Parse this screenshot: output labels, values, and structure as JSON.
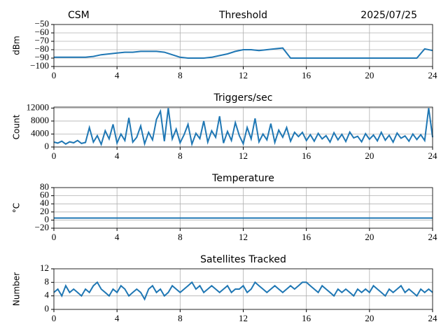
{
  "chart_data": [
    {
      "type": "line",
      "left_title": "CSM",
      "title": "Threshold",
      "right_title": "2025/07/25",
      "ylabel": "dBm",
      "color": "#1f77b4",
      "grid": true,
      "xlim": [
        0,
        24
      ],
      "xticks": [
        0,
        4,
        8,
        12,
        16,
        20,
        24
      ],
      "ylim": [
        -100,
        -50
      ],
      "yticks": [
        {
          "value": -100,
          "label": "−100"
        },
        {
          "value": -90,
          "label": "−90"
        },
        {
          "value": -80,
          "label": "−80"
        },
        {
          "value": -70,
          "label": "−70"
        },
        {
          "value": -60,
          "label": "−60"
        },
        {
          "value": -50,
          "label": "−50"
        }
      ],
      "x": [
        0,
        0.5,
        1,
        1.5,
        2,
        2.5,
        3,
        3.5,
        4,
        4.5,
        5,
        5.5,
        6,
        6.5,
        7,
        7.5,
        8,
        8.5,
        9,
        9.5,
        10,
        10.5,
        11,
        11.5,
        12,
        12.5,
        13,
        13.5,
        14,
        14.5,
        15,
        15.5,
        16,
        16.5,
        17,
        17.5,
        18,
        18.5,
        19,
        19.5,
        20,
        20.5,
        21,
        21.5,
        22,
        22.5,
        23,
        23.5,
        24
      ],
      "values": [
        -89,
        -89,
        -89,
        -89,
        -89,
        -88,
        -86,
        -85,
        -84,
        -83,
        -83,
        -82,
        -82,
        -82,
        -83,
        -86,
        -89,
        -90,
        -90,
        -90,
        -89,
        -87,
        -85,
        -82,
        -80,
        -80,
        -81,
        -80,
        -79,
        -78,
        -90,
        -90,
        -90,
        -90,
        -90,
        -90,
        -90,
        -90,
        -90,
        -90,
        -90,
        -90,
        -90,
        -90,
        -90,
        -90,
        -90,
        -79,
        -81
      ]
    },
    {
      "type": "line",
      "title": "Triggers/sec",
      "ylabel": "Count",
      "color": "#1f77b4",
      "grid": true,
      "xlim": [
        0,
        24
      ],
      "xticks": [
        0,
        4,
        8,
        12,
        16,
        20,
        24
      ],
      "ylim": [
        0,
        12300
      ],
      "yticks": [
        0,
        4000,
        8000,
        12000
      ],
      "x": [
        0,
        0.25,
        0.5,
        0.75,
        1,
        1.25,
        1.5,
        1.75,
        2,
        2.25,
        2.5,
        2.75,
        3,
        3.25,
        3.5,
        3.75,
        4,
        4.25,
        4.5,
        4.75,
        5,
        5.25,
        5.5,
        5.75,
        6,
        6.25,
        6.5,
        6.75,
        7,
        7.25,
        7.5,
        7.75,
        8,
        8.25,
        8.5,
        8.75,
        9,
        9.25,
        9.5,
        9.75,
        10,
        10.25,
        10.5,
        10.75,
        11,
        11.25,
        11.5,
        11.75,
        12,
        12.25,
        12.5,
        12.75,
        13,
        13.25,
        13.5,
        13.75,
        14,
        14.25,
        14.5,
        14.75,
        15,
        15.25,
        15.5,
        15.75,
        16,
        16.25,
        16.5,
        16.75,
        17,
        17.25,
        17.5,
        17.75,
        18,
        18.25,
        18.5,
        18.75,
        19,
        19.25,
        19.5,
        19.75,
        20,
        20.25,
        20.5,
        20.75,
        21,
        21.25,
        21.5,
        21.75,
        22,
        22.25,
        22.5,
        22.75,
        23,
        23.25,
        23.5,
        23.75,
        24
      ],
      "values": [
        1500,
        1200,
        1800,
        900,
        1600,
        1300,
        2000,
        1100,
        1400,
        6000,
        1500,
        3500,
        800,
        5000,
        2500,
        7000,
        1200,
        4000,
        2000,
        9000,
        1500,
        3000,
        6500,
        1000,
        4500,
        2200,
        8500,
        11000,
        1800,
        12000,
        2500,
        5500,
        1300,
        3800,
        7000,
        900,
        4200,
        2600,
        8000,
        1500,
        5000,
        3000,
        9500,
        1200,
        4800,
        2000,
        7500,
        3500,
        1000,
        6000,
        2500,
        8800,
        1600,
        4000,
        2200,
        7200,
        1400,
        5200,
        3000,
        6000,
        1800,
        4500,
        3200,
        4500,
        2000,
        3800,
        1800,
        4200,
        2500,
        3500,
        1500,
        4400,
        2200,
        3900,
        1700,
        4600,
        2800,
        3300,
        1600,
        4100,
        2400,
        3700,
        1900,
        4500,
        2100,
        3600,
        1500,
        4300,
        2700,
        3400,
        1800,
        4000,
        2300,
        3800,
        2000,
        12000,
        3000
      ]
    },
    {
      "type": "line",
      "title": "Temperature",
      "ylabel": "°C",
      "color": "#1f77b4",
      "grid": true,
      "xlim": [
        0,
        24
      ],
      "xticks": [
        0,
        4,
        8,
        12,
        16,
        20,
        24
      ],
      "ylim": [
        -20,
        80
      ],
      "yticks": [
        {
          "value": -20,
          "label": "−20"
        },
        0,
        20,
        40,
        60,
        80
      ],
      "x": [
        0,
        24
      ],
      "values": [
        5,
        5
      ]
    },
    {
      "type": "line",
      "title": "Satellites Tracked",
      "ylabel": "Number",
      "color": "#1f77b4",
      "grid": true,
      "xlim": [
        0,
        24
      ],
      "xticks": [
        0,
        4,
        8,
        12,
        16,
        20,
        24
      ],
      "ylim": [
        0,
        12
      ],
      "yticks": [
        0,
        4,
        8,
        12
      ],
      "x": [
        0,
        0.25,
        0.5,
        0.75,
        1,
        1.25,
        1.5,
        1.75,
        2,
        2.25,
        2.5,
        2.75,
        3,
        3.25,
        3.5,
        3.75,
        4,
        4.25,
        4.5,
        4.75,
        5,
        5.25,
        5.5,
        5.75,
        6,
        6.25,
        6.5,
        6.75,
        7,
        7.25,
        7.5,
        7.75,
        8,
        8.25,
        8.5,
        8.75,
        9,
        9.25,
        9.5,
        9.75,
        10,
        10.25,
        10.5,
        10.75,
        11,
        11.25,
        11.5,
        11.75,
        12,
        12.25,
        12.5,
        12.75,
        13,
        13.25,
        13.5,
        13.75,
        14,
        14.25,
        14.5,
        14.75,
        15,
        15.25,
        15.5,
        15.75,
        16,
        16.25,
        16.5,
        16.75,
        17,
        17.25,
        17.5,
        17.75,
        18,
        18.25,
        18.5,
        18.75,
        19,
        19.25,
        19.5,
        19.75,
        20,
        20.25,
        20.5,
        20.75,
        21,
        21.25,
        21.5,
        21.75,
        22,
        22.25,
        22.5,
        22.75,
        23,
        23.25,
        23.5,
        23.75,
        24
      ],
      "values": [
        5,
        6,
        4,
        7,
        5,
        6,
        5,
        4,
        6,
        5,
        7,
        8,
        6,
        5,
        4,
        6,
        5,
        7,
        6,
        4,
        5,
        6,
        5,
        3,
        6,
        7,
        5,
        6,
        4,
        5,
        7,
        6,
        5,
        6,
        7,
        8,
        6,
        7,
        5,
        6,
        7,
        6,
        5,
        6,
        7,
        5,
        6,
        6,
        7,
        5,
        6,
        8,
        7,
        6,
        5,
        6,
        7,
        6,
        5,
        6,
        7,
        6,
        7,
        8,
        8,
        7,
        6,
        5,
        7,
        6,
        5,
        4,
        6,
        5,
        6,
        5,
        4,
        6,
        5,
        6,
        5,
        7,
        6,
        5,
        4,
        6,
        5,
        6,
        7,
        5,
        6,
        5,
        4,
        6,
        5,
        6,
        5
      ]
    }
  ]
}
